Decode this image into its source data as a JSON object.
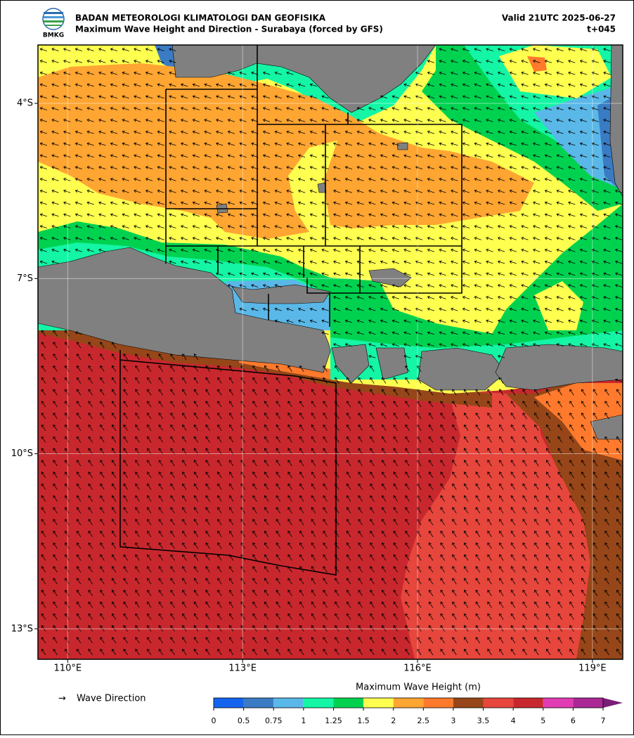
{
  "header": {
    "logo_text": "BMKG",
    "title": "BADAN METEOROLOGI KLIMATOLOGI DAN GEOFISIKA",
    "subtitle": "Maximum Wave Height and Direction - Surabaya (forced by GFS)",
    "valid": "Valid 21UTC 2025-06-27",
    "lead": "t+045"
  },
  "map": {
    "xlim": [
      109.49,
      119.52
    ],
    "ylim": [
      -13.52,
      -3.0
    ],
    "lon_ticks": [
      {
        "value": 110,
        "label": "110°E"
      },
      {
        "value": 113,
        "label": "113°E"
      },
      {
        "value": 116,
        "label": "116°E"
      },
      {
        "value": 119,
        "label": "119°E"
      }
    ],
    "lat_ticks": [
      {
        "value": -4,
        "label": "4°S"
      },
      {
        "value": -7,
        "label": "7°S"
      },
      {
        "value": -10,
        "label": "10°S"
      },
      {
        "value": -13,
        "label": "13°S"
      }
    ],
    "grid": true
  },
  "legend": {
    "arrow_symbol": "→",
    "arrow_label": "Wave Direction",
    "title": "Maximum Wave Height (m)",
    "levels": [
      0,
      0.5,
      0.75,
      1,
      1.25,
      1.5,
      2,
      2.5,
      3,
      3.5,
      4,
      5,
      6,
      7
    ],
    "colors": [
      "#1464f0",
      "#3a7cc4",
      "#5ab8e8",
      "#14f5a5",
      "#00d250",
      "#ffff50",
      "#ffa532",
      "#ff7a2c",
      "#964618",
      "#e6463c",
      "#c8282d",
      "#e13cb4",
      "#aa2896",
      "#781e78"
    ]
  }
}
